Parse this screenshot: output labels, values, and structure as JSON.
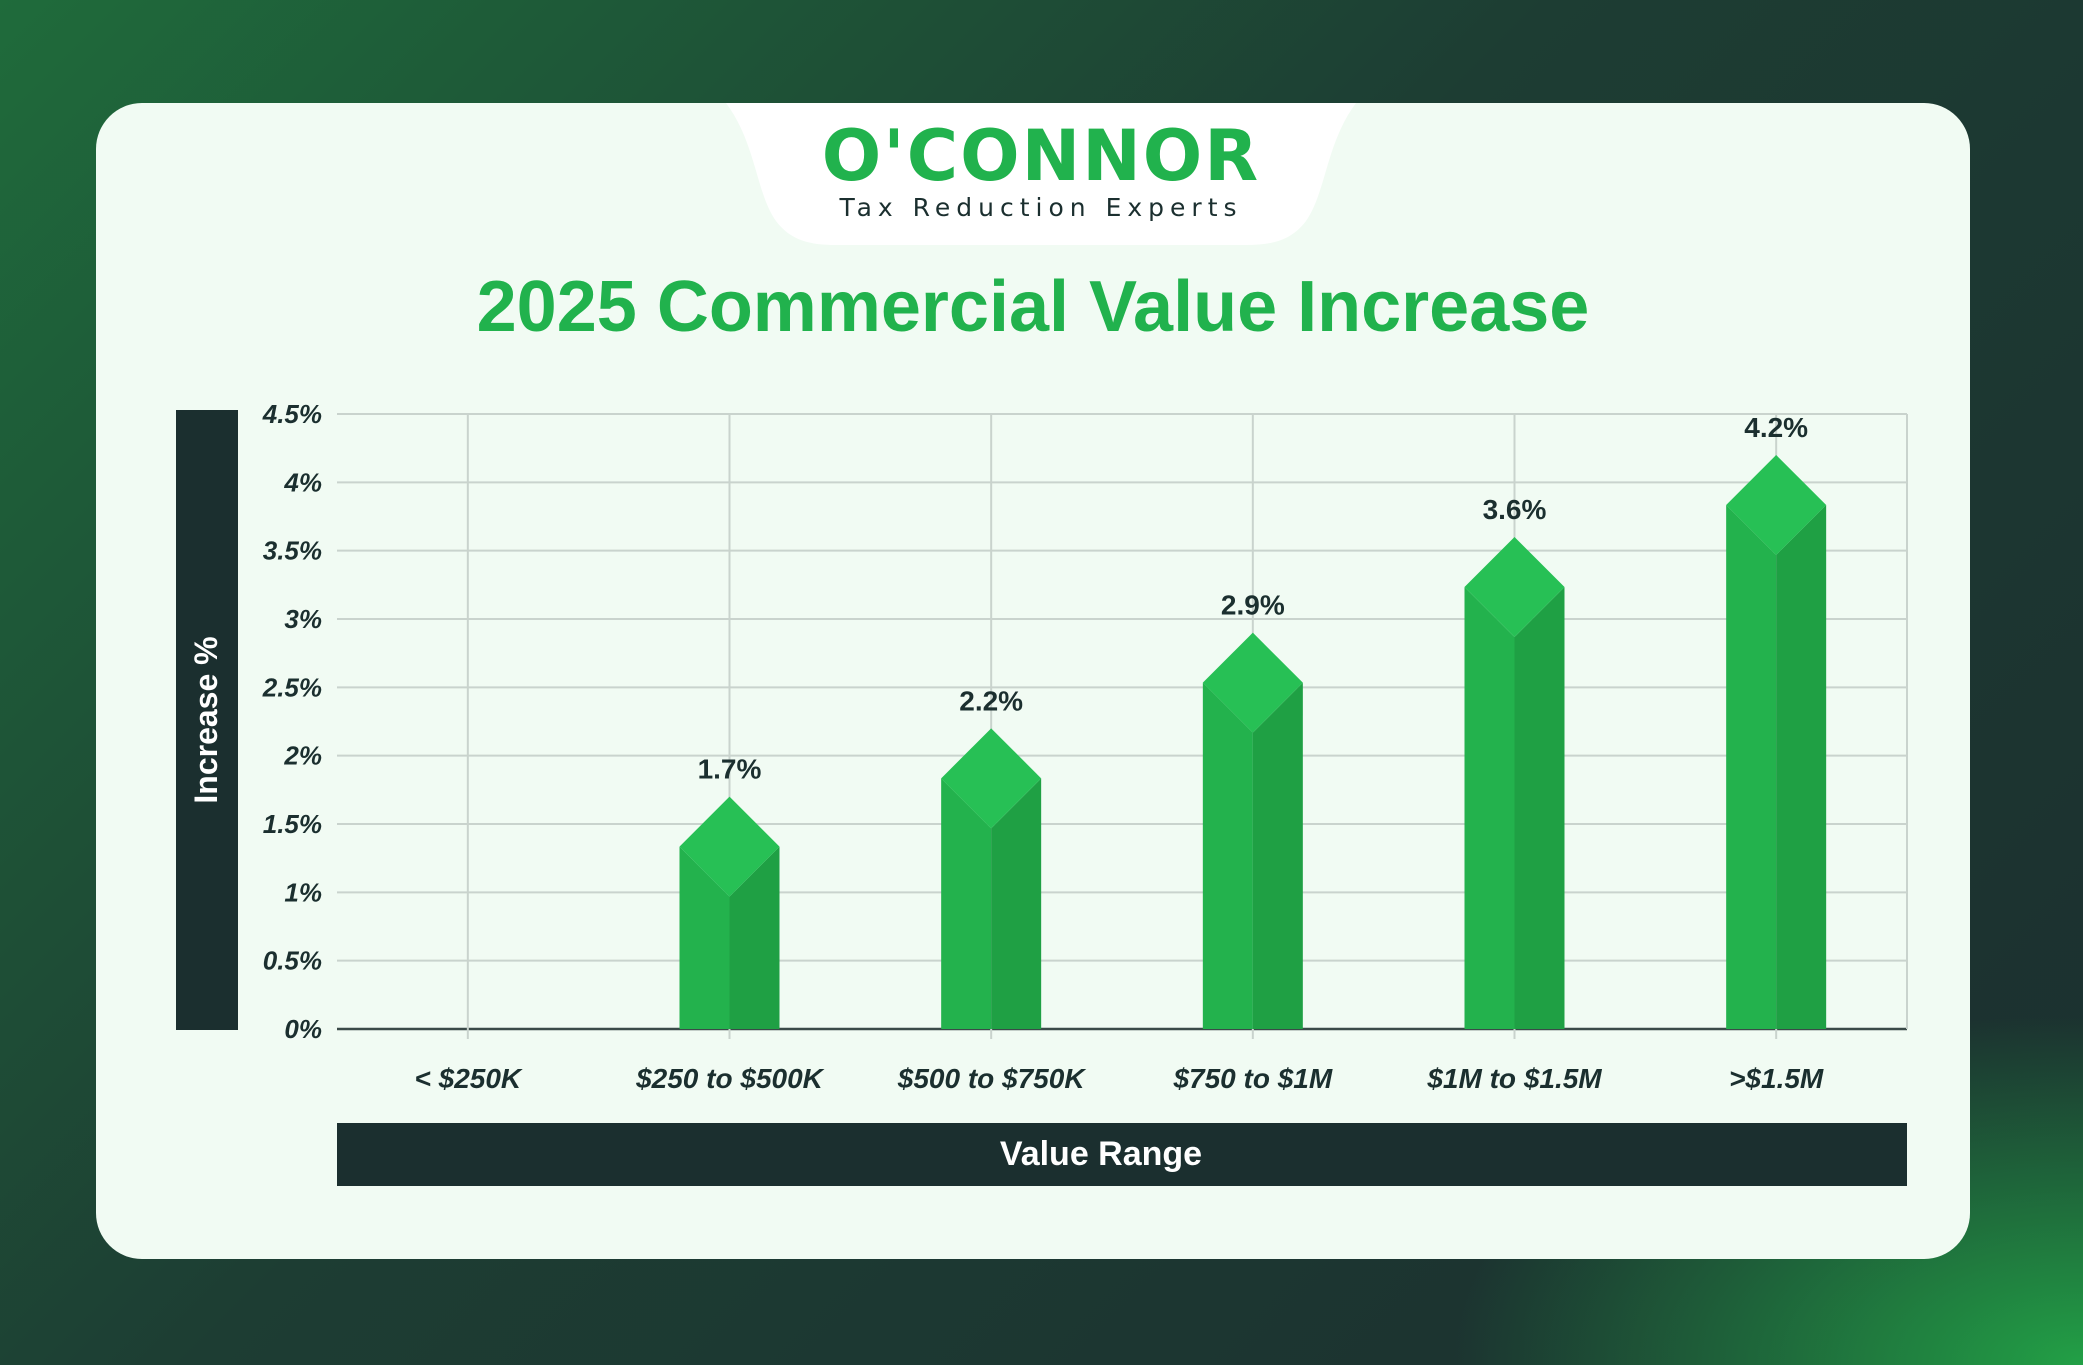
{
  "brand": {
    "name": "O'CONNOR",
    "tagline": "Tax Reduction Experts",
    "accent_color": "#21b24d",
    "dark_color": "#1b2f2f"
  },
  "chart_data": {
    "type": "bar",
    "title": "2025 Commercial Value Increase",
    "xlabel": "Value Range",
    "ylabel": "Increase %",
    "categories": [
      "< $250K",
      "$250 to $500K",
      "$500 to $750K",
      "$750 to $1M",
      "$1M to $1.5M",
      ">$1.5M"
    ],
    "values": [
      null,
      1.7,
      2.2,
      2.9,
      3.6,
      4.2
    ],
    "data_labels": [
      "",
      "1.7%",
      "2.2%",
      "2.9%",
      "3.6%",
      "4.2%"
    ],
    "ylim": [
      0,
      4.5
    ],
    "yticks": [
      0,
      0.5,
      1,
      1.5,
      2,
      2.5,
      3,
      3.5,
      4,
      4.5
    ],
    "ytick_labels": [
      "0%",
      "0.5%",
      "1%",
      "1.5%",
      "2%",
      "2.5%",
      "3%",
      "3.5%",
      "4%",
      "4.5%"
    ],
    "grid": true,
    "bar_color": "#23b24d"
  }
}
